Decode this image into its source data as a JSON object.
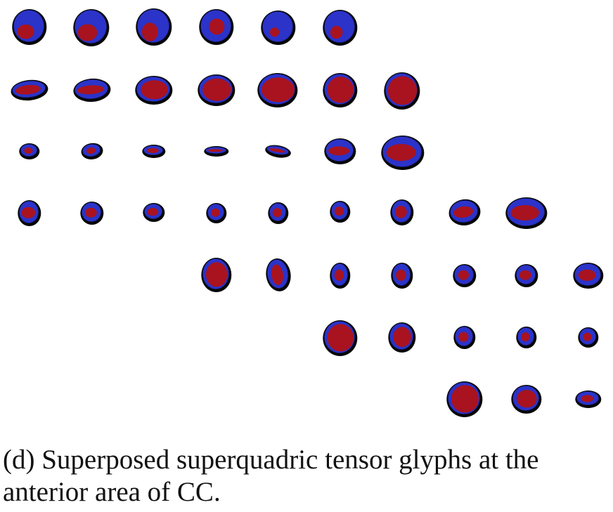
{
  "caption": "(d) Superposed superquadric tensor glyphs at the anterior area of CC.",
  "colors": {
    "background": "#ffffff",
    "outline": "#050505",
    "blue": "#2b33c9",
    "red": "#a8131f"
  }
}
